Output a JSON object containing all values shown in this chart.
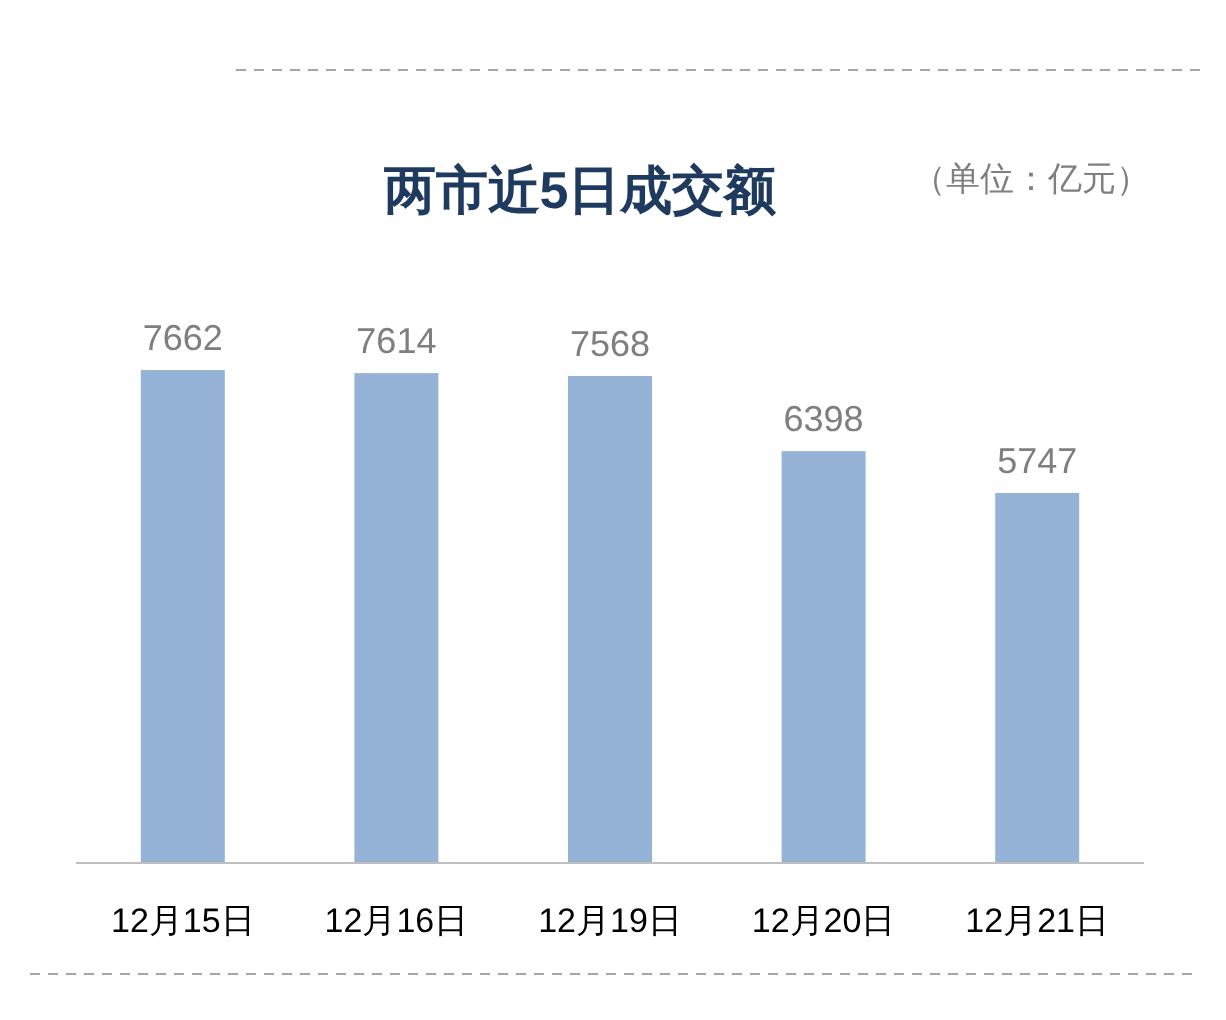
{
  "chart_data": {
    "type": "bar",
    "title": "两市近5日成交额",
    "annotations": [
      "（单位：亿元）"
    ],
    "categories": [
      "12月15日",
      "12月16日",
      "12月19日",
      "12月20日",
      "12月21日"
    ],
    "values": [
      7662,
      7614,
      7568,
      6398,
      5747
    ],
    "color": "#95b3d7",
    "data_labels": true
  }
}
